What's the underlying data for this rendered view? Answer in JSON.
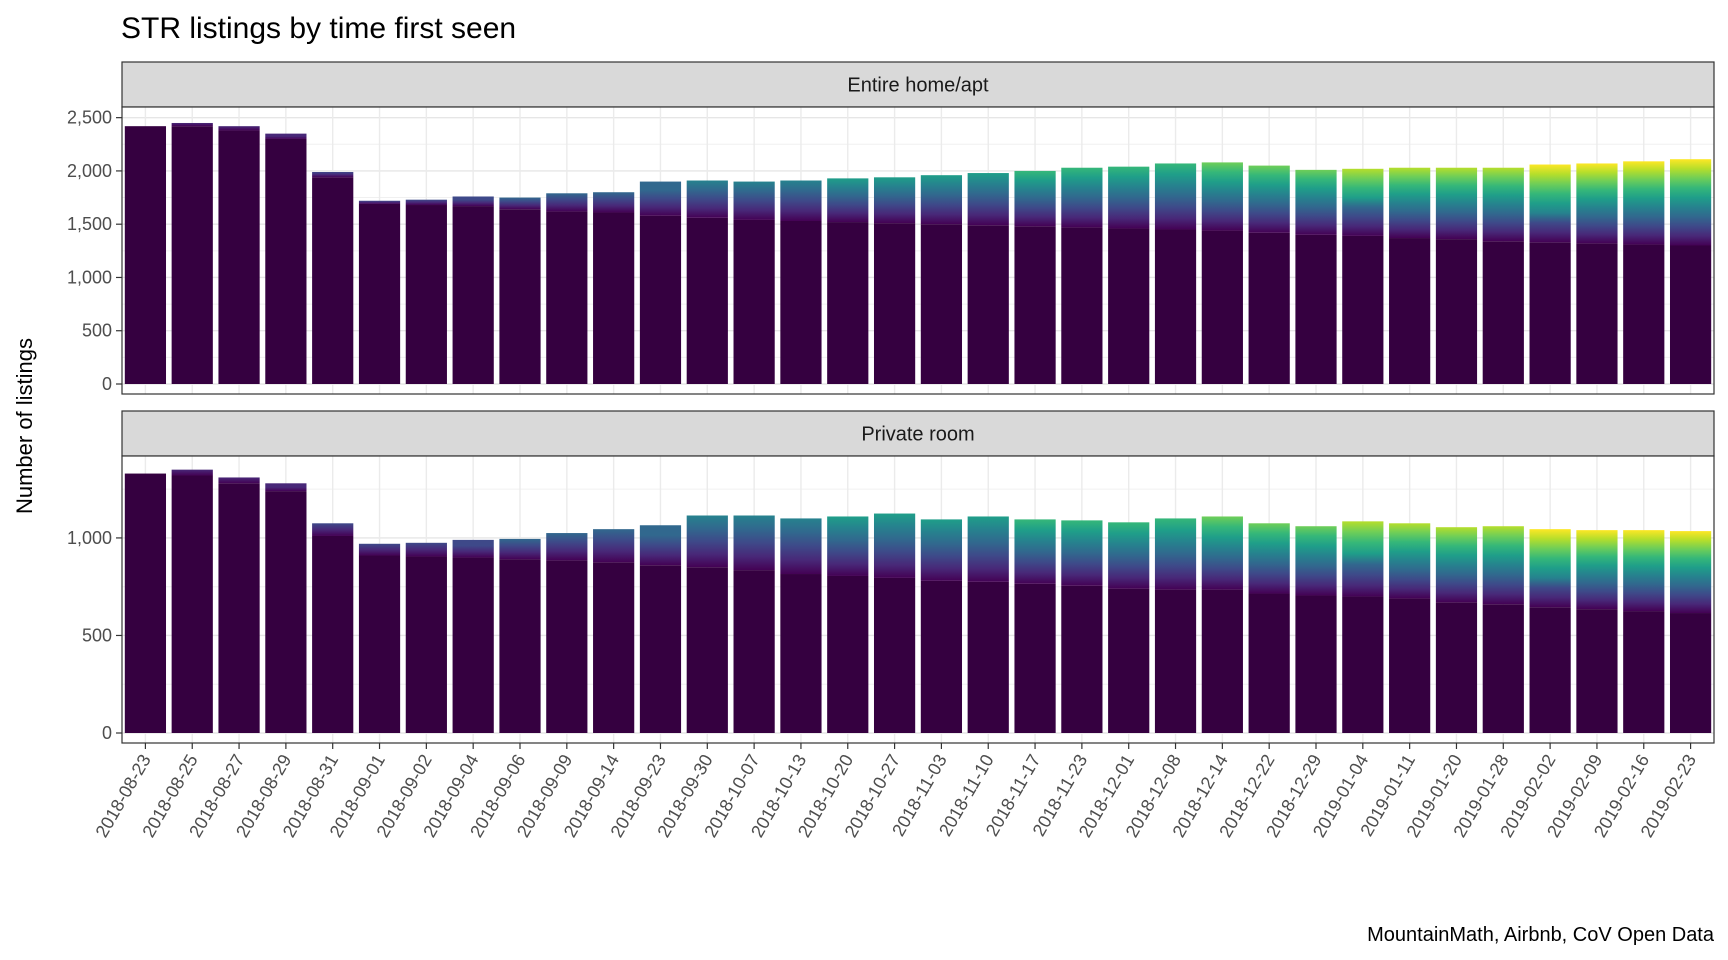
{
  "chart_data": {
    "type": "bar",
    "stacked": true,
    "title": "STR listings by time first seen",
    "ylabel": "Number of listings",
    "xlabel": "",
    "caption": "MountainMath, Airbnb, CoV Open Data",
    "grid": true,
    "legend": "none",
    "fill_encoding": "colour gradient by date first seen (earliest dark purple to latest yellow)",
    "categories": [
      "2018-08-23",
      "2018-08-25",
      "2018-08-27",
      "2018-08-29",
      "2018-08-31",
      "2018-09-01",
      "2018-09-02",
      "2018-09-04",
      "2018-09-06",
      "2018-09-09",
      "2018-09-14",
      "2018-09-23",
      "2018-09-30",
      "2018-10-07",
      "2018-10-13",
      "2018-10-20",
      "2018-10-27",
      "2018-11-03",
      "2018-11-10",
      "2018-11-17",
      "2018-11-23",
      "2018-12-01",
      "2018-12-08",
      "2018-12-14",
      "2018-12-22",
      "2018-12-29",
      "2019-01-04",
      "2019-01-11",
      "2019-01-20",
      "2019-01-28",
      "2019-02-02",
      "2019-02-09",
      "2019-02-16",
      "2019-02-23"
    ],
    "panels": [
      {
        "name": "Entire home/apt",
        "ylim": [
          0,
          2600
        ],
        "yticks": [
          0,
          500,
          1000,
          1500,
          2000,
          2500
        ],
        "ytick_labels": [
          "0",
          "500",
          "1,000",
          "1,500",
          "2,000",
          "2,500"
        ],
        "totals": [
          2420,
          2450,
          2420,
          2350,
          1990,
          1720,
          1730,
          1760,
          1750,
          1790,
          1800,
          1900,
          1910,
          1900,
          1910,
          1930,
          1940,
          1960,
          1980,
          2000,
          2030,
          2040,
          2070,
          2080,
          2050,
          2010,
          2020,
          2030,
          2030,
          2030,
          2060,
          2070,
          2090,
          2110
        ],
        "first_seen_base": [
          2420,
          2450,
          2420,
          2350,
          1990,
          1720,
          1730,
          1760,
          1750,
          1790,
          1800,
          1900,
          1910,
          1900,
          1910,
          1930,
          1940,
          1960,
          1980,
          2000,
          2030,
          2040,
          2070,
          2080,
          2050,
          2010,
          2020,
          2030,
          2030,
          2030,
          2060,
          2070,
          2090,
          2110
        ],
        "earliest_cohort": [
          2420,
          2420,
          2380,
          2300,
          1940,
          1690,
          1680,
          1670,
          1640,
          1620,
          1610,
          1580,
          1560,
          1540,
          1530,
          1520,
          1510,
          1500,
          1490,
          1480,
          1470,
          1460,
          1450,
          1440,
          1420,
          1400,
          1390,
          1370,
          1360,
          1340,
          1330,
          1320,
          1310,
          1300
        ]
      },
      {
        "name": "Private room",
        "ylim": [
          0,
          1420
        ],
        "yticks": [
          0,
          500,
          1000
        ],
        "ytick_labels": [
          "0",
          "500",
          "1,000"
        ],
        "totals": [
          1330,
          1350,
          1310,
          1280,
          1075,
          970,
          975,
          990,
          995,
          1025,
          1045,
          1065,
          1115,
          1115,
          1100,
          1110,
          1125,
          1095,
          1110,
          1095,
          1090,
          1080,
          1100,
          1110,
          1075,
          1060,
          1085,
          1075,
          1055,
          1060,
          1045,
          1040,
          1040,
          1035
        ],
        "earliest_cohort": [
          1330,
          1320,
          1280,
          1240,
          1010,
          910,
          905,
          900,
          890,
          885,
          875,
          860,
          850,
          835,
          815,
          805,
          795,
          780,
          775,
          765,
          755,
          740,
          735,
          735,
          715,
          705,
          700,
          690,
          670,
          660,
          645,
          635,
          625,
          615
        ]
      }
    ]
  }
}
